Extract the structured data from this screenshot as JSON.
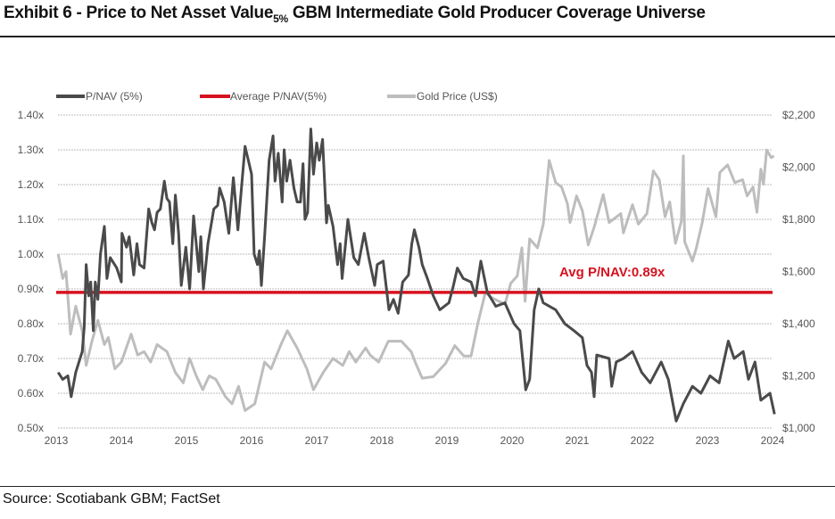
{
  "title": {
    "main": "Exhibit 6 - Price to Net Asset Value",
    "sub": "5%",
    "rest": " GBM Intermediate Gold Producer Coverage Universe"
  },
  "source": "Source: Scotiabank GBM; FactSet",
  "chart_data": {
    "type": "line",
    "title": "Exhibit 6 - Price to Net Asset Value 5% GBM Intermediate Gold Producer Coverage Universe",
    "x_ticks": [
      "2013",
      "2014",
      "2015",
      "2016",
      "2017",
      "2018",
      "2019",
      "2020",
      "2021",
      "2022",
      "2023",
      "2024"
    ],
    "xlim": [
      2013,
      2024
    ],
    "y_left": {
      "ticks": [
        "0.50x",
        "0.60x",
        "0.70x",
        "0.80x",
        "0.90x",
        "1.00x",
        "1.10x",
        "1.20x",
        "1.30x",
        "1.40x"
      ],
      "ylim": [
        0.5,
        1.4
      ]
    },
    "y_right": {
      "ticks": [
        "$1,000",
        "$1,200",
        "$1,400",
        "$1,600",
        "$1,800",
        "$2,000",
        "$2,200"
      ],
      "ylim": [
        1000,
        2200
      ]
    },
    "grid": true,
    "legend_position": "top-left",
    "annotation": "Avg P/NAV:0.89x",
    "colors": {
      "pnav": "#4a4a4a",
      "avg": "#d6121f",
      "gold": "#bdbdbd"
    },
    "series": [
      {
        "name": "P/NAV (5%)",
        "axis": "left",
        "points": [
          [
            2013.03,
            0.66
          ],
          [
            2013.1,
            0.64
          ],
          [
            2013.18,
            0.65
          ],
          [
            2013.23,
            0.59
          ],
          [
            2013.3,
            0.66
          ],
          [
            2013.4,
            0.72
          ],
          [
            2013.43,
            0.79
          ],
          [
            2013.46,
            0.97
          ],
          [
            2013.5,
            0.88
          ],
          [
            2013.53,
            0.92
          ],
          [
            2013.57,
            0.78
          ],
          [
            2013.6,
            0.92
          ],
          [
            2013.64,
            0.87
          ],
          [
            2013.68,
            1.0
          ],
          [
            2013.74,
            1.08
          ],
          [
            2013.78,
            0.93
          ],
          [
            2013.83,
            0.99
          ],
          [
            2013.93,
            0.96
          ],
          [
            2014.0,
            0.92
          ],
          [
            2014.01,
            1.06
          ],
          [
            2014.08,
            1.02
          ],
          [
            2014.12,
            1.05
          ],
          [
            2014.19,
            0.94
          ],
          [
            2014.24,
            1.03
          ],
          [
            2014.28,
            0.97
          ],
          [
            2014.35,
            0.96
          ],
          [
            2014.42,
            1.13
          ],
          [
            2014.47,
            1.09
          ],
          [
            2014.51,
            1.07
          ],
          [
            2014.55,
            1.12
          ],
          [
            2014.6,
            1.13
          ],
          [
            2014.66,
            1.21
          ],
          [
            2014.7,
            1.16
          ],
          [
            2014.74,
            1.15
          ],
          [
            2014.79,
            1.03
          ],
          [
            2014.83,
            1.17
          ],
          [
            2014.88,
            1.06
          ],
          [
            2014.92,
            0.91
          ],
          [
            2014.99,
            1.02
          ],
          [
            2015.05,
            0.9
          ],
          [
            2015.11,
            1.11
          ],
          [
            2015.19,
            0.95
          ],
          [
            2015.22,
            1.05
          ],
          [
            2015.26,
            0.9
          ],
          [
            2015.33,
            1.03
          ],
          [
            2015.42,
            1.13
          ],
          [
            2015.48,
            1.14
          ],
          [
            2015.51,
            1.19
          ],
          [
            2015.58,
            1.15
          ],
          [
            2015.65,
            1.06
          ],
          [
            2015.72,
            1.22
          ],
          [
            2015.79,
            1.07
          ],
          [
            2015.85,
            1.2
          ],
          [
            2015.9,
            1.31
          ],
          [
            2016.0,
            1.23
          ],
          [
            2016.04,
            1.0
          ],
          [
            2016.09,
            0.97
          ],
          [
            2016.12,
            1.01
          ],
          [
            2016.15,
            0.91
          ],
          [
            2016.2,
            1.05
          ],
          [
            2016.27,
            1.27
          ],
          [
            2016.33,
            1.34
          ],
          [
            2016.36,
            1.21
          ],
          [
            2016.41,
            1.29
          ],
          [
            2016.47,
            1.15
          ],
          [
            2016.5,
            1.3
          ],
          [
            2016.54,
            1.21
          ],
          [
            2016.59,
            1.27
          ],
          [
            2016.65,
            1.19
          ],
          [
            2016.7,
            1.15
          ],
          [
            2016.75,
            1.15
          ],
          [
            2016.79,
            1.26
          ],
          [
            2016.82,
            1.1
          ],
          [
            2016.86,
            1.12
          ],
          [
            2016.91,
            1.36
          ],
          [
            2016.95,
            1.23
          ],
          [
            2017.0,
            1.32
          ],
          [
            2017.04,
            1.27
          ],
          [
            2017.09,
            1.33
          ],
          [
            2017.15,
            1.09
          ],
          [
            2017.18,
            1.14
          ],
          [
            2017.25,
            1.08
          ],
          [
            2017.32,
            0.97
          ],
          [
            2017.36,
            1.03
          ],
          [
            2017.39,
            0.93
          ],
          [
            2017.48,
            1.1
          ],
          [
            2017.57,
            0.99
          ],
          [
            2017.64,
            0.97
          ],
          [
            2017.73,
            1.06
          ],
          [
            2017.8,
            0.99
          ],
          [
            2017.89,
            0.91
          ],
          [
            2017.93,
            0.97
          ],
          [
            2018.02,
            0.98
          ],
          [
            2018.11,
            0.84
          ],
          [
            2018.18,
            0.87
          ],
          [
            2018.25,
            0.83
          ],
          [
            2018.32,
            0.92
          ],
          [
            2018.41,
            0.94
          ],
          [
            2018.46,
            1.03
          ],
          [
            2018.5,
            1.07
          ],
          [
            2018.57,
            1.02
          ],
          [
            2018.62,
            0.97
          ],
          [
            2018.7,
            0.93
          ],
          [
            2018.79,
            0.88
          ],
          [
            2018.89,
            0.84
          ],
          [
            2019.03,
            0.86
          ],
          [
            2019.1,
            0.91
          ],
          [
            2019.16,
            0.96
          ],
          [
            2019.25,
            0.93
          ],
          [
            2019.37,
            0.92
          ],
          [
            2019.44,
            0.88
          ],
          [
            2019.52,
            0.98
          ],
          [
            2019.62,
            0.89
          ],
          [
            2019.75,
            0.85
          ],
          [
            2019.89,
            0.86
          ],
          [
            2020.03,
            0.8
          ],
          [
            2020.12,
            0.78
          ],
          [
            2020.21,
            0.61
          ],
          [
            2020.27,
            0.64
          ],
          [
            2020.34,
            0.84
          ],
          [
            2020.41,
            0.9
          ],
          [
            2020.48,
            0.86
          ],
          [
            2020.67,
            0.84
          ],
          [
            2020.81,
            0.8
          ],
          [
            2020.95,
            0.78
          ],
          [
            2021.08,
            0.76
          ],
          [
            2021.15,
            0.68
          ],
          [
            2021.22,
            0.66
          ],
          [
            2021.26,
            0.59
          ],
          [
            2021.3,
            0.71
          ],
          [
            2021.49,
            0.7
          ],
          [
            2021.53,
            0.62
          ],
          [
            2021.6,
            0.69
          ],
          [
            2021.71,
            0.7
          ],
          [
            2021.85,
            0.72
          ],
          [
            2021.99,
            0.66
          ],
          [
            2022.12,
            0.63
          ],
          [
            2022.29,
            0.69
          ],
          [
            2022.4,
            0.64
          ],
          [
            2022.52,
            0.52
          ],
          [
            2022.63,
            0.57
          ],
          [
            2022.77,
            0.62
          ],
          [
            2022.9,
            0.6
          ],
          [
            2023.04,
            0.65
          ],
          [
            2023.18,
            0.63
          ],
          [
            2023.32,
            0.75
          ],
          [
            2023.41,
            0.7
          ],
          [
            2023.55,
            0.72
          ],
          [
            2023.63,
            0.64
          ],
          [
            2023.73,
            0.69
          ],
          [
            2023.82,
            0.58
          ],
          [
            2023.96,
            0.6
          ],
          [
            2024.03,
            0.54
          ]
        ]
      },
      {
        "name": "Average P/NAV(5%)",
        "axis": "left",
        "value": 0.89
      },
      {
        "name": "Gold Price (US$)",
        "axis": "right",
        "points": [
          [
            2013.03,
            1667
          ],
          [
            2013.1,
            1573
          ],
          [
            2013.15,
            1600
          ],
          [
            2013.22,
            1360
          ],
          [
            2013.3,
            1467
          ],
          [
            2013.4,
            1373
          ],
          [
            2013.46,
            1240
          ],
          [
            2013.55,
            1333
          ],
          [
            2013.64,
            1413
          ],
          [
            2013.74,
            1320
          ],
          [
            2013.8,
            1347
          ],
          [
            2013.9,
            1227
          ],
          [
            2014.0,
            1253
          ],
          [
            2014.15,
            1360
          ],
          [
            2014.25,
            1280
          ],
          [
            2014.35,
            1293
          ],
          [
            2014.45,
            1253
          ],
          [
            2014.55,
            1320
          ],
          [
            2014.7,
            1293
          ],
          [
            2014.83,
            1213
          ],
          [
            2014.95,
            1173
          ],
          [
            2015.05,
            1267
          ],
          [
            2015.15,
            1200
          ],
          [
            2015.25,
            1147
          ],
          [
            2015.35,
            1200
          ],
          [
            2015.45,
            1187
          ],
          [
            2015.6,
            1120
          ],
          [
            2015.7,
            1093
          ],
          [
            2015.8,
            1160
          ],
          [
            2015.9,
            1067
          ],
          [
            2016.05,
            1093
          ],
          [
            2016.2,
            1253
          ],
          [
            2016.3,
            1227
          ],
          [
            2016.45,
            1320
          ],
          [
            2016.55,
            1373
          ],
          [
            2016.7,
            1307
          ],
          [
            2016.85,
            1227
          ],
          [
            2016.95,
            1147
          ],
          [
            2017.1,
            1213
          ],
          [
            2017.25,
            1267
          ],
          [
            2017.4,
            1240
          ],
          [
            2017.5,
            1293
          ],
          [
            2017.6,
            1253
          ],
          [
            2017.75,
            1307
          ],
          [
            2017.82,
            1280
          ],
          [
            2017.95,
            1253
          ],
          [
            2018.1,
            1333
          ],
          [
            2018.3,
            1333
          ],
          [
            2018.45,
            1293
          ],
          [
            2018.52,
            1248
          ],
          [
            2018.62,
            1191
          ],
          [
            2018.79,
            1197
          ],
          [
            2018.98,
            1248
          ],
          [
            2019.12,
            1316
          ],
          [
            2019.26,
            1276
          ],
          [
            2019.37,
            1276
          ],
          [
            2019.48,
            1407
          ],
          [
            2019.59,
            1520
          ],
          [
            2019.7,
            1498
          ],
          [
            2019.89,
            1475
          ],
          [
            2019.98,
            1555
          ],
          [
            2020.08,
            1583
          ],
          [
            2020.15,
            1691
          ],
          [
            2020.2,
            1486
          ],
          [
            2020.27,
            1725
          ],
          [
            2020.39,
            1691
          ],
          [
            2020.48,
            1782
          ],
          [
            2020.57,
            2026
          ],
          [
            2020.67,
            1941
          ],
          [
            2020.76,
            1924
          ],
          [
            2020.85,
            1861
          ],
          [
            2020.89,
            1788
          ],
          [
            2020.99,
            1890
          ],
          [
            2021.08,
            1833
          ],
          [
            2021.17,
            1702
          ],
          [
            2021.26,
            1770
          ],
          [
            2021.4,
            1895
          ],
          [
            2021.49,
            1788
          ],
          [
            2021.67,
            1822
          ],
          [
            2021.71,
            1748
          ],
          [
            2021.85,
            1856
          ],
          [
            2021.94,
            1782
          ],
          [
            2022.07,
            1822
          ],
          [
            2022.17,
            1986
          ],
          [
            2022.26,
            1952
          ],
          [
            2022.35,
            1810
          ],
          [
            2022.42,
            1867
          ],
          [
            2022.51,
            1708
          ],
          [
            2022.6,
            1793
          ],
          [
            2022.63,
            2043
          ],
          [
            2022.65,
            1714
          ],
          [
            2022.77,
            1640
          ],
          [
            2022.83,
            1691
          ],
          [
            2022.92,
            1788
          ],
          [
            2023.01,
            1918
          ],
          [
            2023.13,
            1810
          ],
          [
            2023.19,
            1980
          ],
          [
            2023.31,
            2009
          ],
          [
            2023.42,
            1941
          ],
          [
            2023.54,
            1952
          ],
          [
            2023.61,
            1890
          ],
          [
            2023.7,
            1924
          ],
          [
            2023.76,
            1827
          ],
          [
            2023.82,
            1992
          ],
          [
            2023.86,
            1935
          ],
          [
            2023.91,
            2066
          ],
          [
            2023.98,
            2037
          ],
          [
            2024.02,
            2043
          ]
        ]
      }
    ]
  }
}
